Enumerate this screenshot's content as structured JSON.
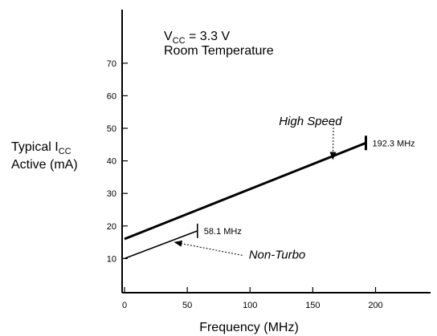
{
  "chart_data": {
    "type": "line",
    "annotations": {
      "vcc_label": {
        "prefix": "V",
        "sub": "CC",
        "suffix": " = 3.3 V"
      },
      "temp_label": "Room Temperature"
    },
    "ylabel": {
      "line1_prefix": "Typical I",
      "line1_sub": "CC",
      "line2": "Active (mA)"
    },
    "xlabel": "Frequency (MHz)",
    "xlim": [
      0,
      250
    ],
    "ylim": [
      0,
      80
    ],
    "x_ticks": [
      0,
      50,
      100,
      150,
      200
    ],
    "x_tick_labels": [
      "0",
      "50",
      "100",
      "150",
      "200"
    ],
    "y_ticks": [
      10,
      20,
      30,
      40,
      50,
      60,
      70
    ],
    "y_tick_labels": [
      "10",
      "20",
      "30",
      "40",
      "50",
      "60",
      "70"
    ],
    "series": [
      {
        "name": "High Speed",
        "x": [
          0,
          192.3
        ],
        "y": [
          16,
          45.5
        ],
        "end_label": "192.3 MHz",
        "label_point": {
          "x": 123,
          "y": 51
        },
        "arrow_to": {
          "x": 166,
          "y": 40.5
        }
      },
      {
        "name": "Non-Turbo",
        "x": [
          0,
          58.1
        ],
        "y": [
          10,
          18.5
        ],
        "end_label": "58.1 MHz",
        "label_point": {
          "x": 99,
          "y": 10
        },
        "arrow_to": {
          "x": 40,
          "y": 15
        }
      }
    ],
    "grid": false,
    "legend": "none"
  }
}
